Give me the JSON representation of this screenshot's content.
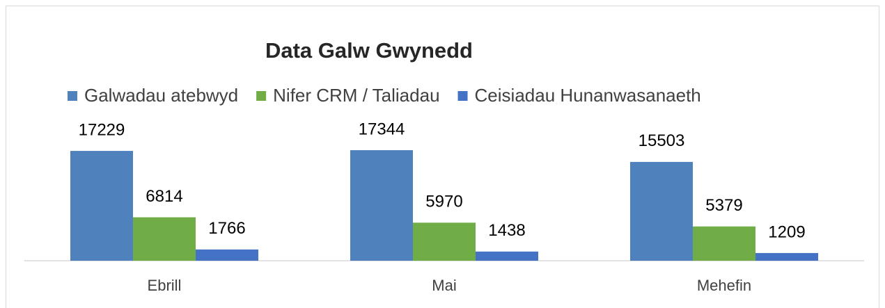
{
  "chart_data": {
    "type": "bar",
    "title": "Data Galw Gwynedd",
    "categories": [
      "Ebrill",
      "Mai",
      "Mehefin"
    ],
    "series": [
      {
        "name": "Galwadau atebwyd",
        "color": "#4f81bd",
        "values": [
          17229,
          17344,
          15503
        ]
      },
      {
        "name": "Nifer CRM / Taliadau",
        "color": "#70ad47",
        "values": [
          6814,
          5970,
          5379
        ]
      },
      {
        "name": "Ceisiadau Hunanwasanaeth",
        "color": "#4472c4",
        "values": [
          1766,
          1438,
          1209
        ]
      }
    ],
    "legend": "top"
  }
}
